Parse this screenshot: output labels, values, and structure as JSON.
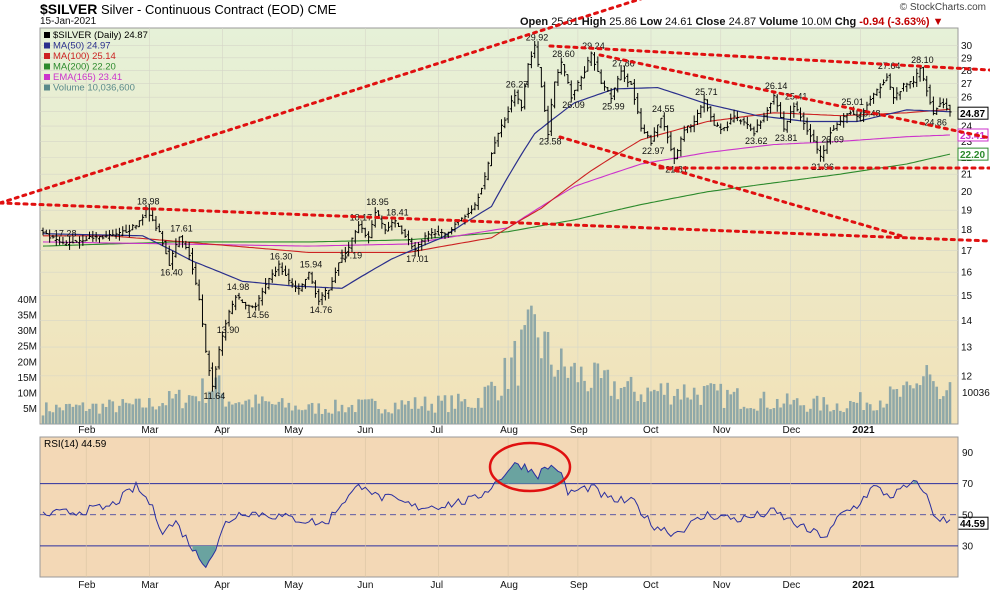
{
  "header": {
    "symbol": "$SILVER",
    "name": "Silver - Continuous Contract (EOD)",
    "exchange": "CME",
    "date": "15-Jan-2021",
    "open_label": "Open",
    "open": "25.61",
    "high_label": "High",
    "high": "25.86",
    "low_label": "Low",
    "low": "24.61",
    "close_label": "Close",
    "close": "24.87",
    "volume_label": "Volume",
    "volume": "10.0M",
    "chg_label": "Chg",
    "chg": "-0.94 (-3.63%)",
    "brand": "© StockCharts.com"
  },
  "legend": [
    {
      "text": "$SILVER (Daily) 24.87",
      "color": "#000000"
    },
    {
      "text": "MA(50) 24.97",
      "color": "#2a2f8c"
    },
    {
      "text": "MA(100) 25.14",
      "color": "#cc2222"
    },
    {
      "text": "MA(200) 22.20",
      "color": "#2c8a2c"
    },
    {
      "text": "EMA(165) 23.41",
      "color": "#cc33cc"
    },
    {
      "text": "Volume 10,036,600",
      "color": "#5a8a8a"
    }
  ],
  "rsi_legend": "RSI(14) 44.59",
  "colors": {
    "panel_top": "#e6f1d8",
    "panel_bottom": "#f2e2b8",
    "rsi_bg": "#f3d8b6",
    "rsi_line": "#2a2fa0",
    "rsi_fill": "#6aa3a0",
    "trend": "#e01010",
    "ma50": "#2a2f8c",
    "ma100": "#cc2222",
    "ma200": "#2c8a2c",
    "ema165": "#cc33cc",
    "volume": "#8fa8a8"
  },
  "chart_data": {
    "type": "line",
    "title": "$SILVER Silver - Continuous Contract (EOD) CME",
    "price_axis": {
      "scale": "log",
      "ylim": [
        10.5,
        31.5
      ],
      "ticks": [
        12,
        13,
        14,
        15,
        16,
        17,
        18,
        19,
        20,
        21,
        22,
        23,
        24,
        25,
        26,
        27,
        28,
        29,
        30
      ]
    },
    "volume_axis": {
      "unit": "M",
      "ticks": [
        "5M",
        "10M",
        "15M",
        "20M",
        "25M",
        "30M",
        "35M",
        "40M"
      ],
      "max": 45
    },
    "rsi_axis": {
      "ylim": [
        10,
        100
      ],
      "ticks": [
        30,
        50,
        70,
        90
      ],
      "overbought": 70,
      "oversold": 30
    },
    "x_months": [
      "Feb",
      "Mar",
      "Apr",
      "May",
      "Jun",
      "Jul",
      "Aug",
      "Sep",
      "Oct",
      "Nov",
      "Dec",
      "2021"
    ],
    "price_anchors": [
      [
        0,
        17.8
      ],
      [
        6,
        17.28
      ],
      [
        14,
        17.6
      ],
      [
        22,
        17.7
      ],
      [
        28,
        18.2
      ],
      [
        31,
        18.98
      ],
      [
        35,
        17.9
      ],
      [
        38,
        16.4
      ],
      [
        41,
        17.61
      ],
      [
        44,
        16.8
      ],
      [
        47,
        14.8
      ],
      [
        49,
        12.8
      ],
      [
        51,
        11.64
      ],
      [
        53,
        12.9
      ],
      [
        55,
        13.9
      ],
      [
        58,
        14.98
      ],
      [
        61,
        14.6
      ],
      [
        64,
        14.56
      ],
      [
        67,
        15.4
      ],
      [
        71,
        16.3
      ],
      [
        74,
        15.6
      ],
      [
        77,
        15.2
      ],
      [
        80,
        15.94
      ],
      [
        83,
        14.76
      ],
      [
        86,
        15.3
      ],
      [
        89,
        16.4
      ],
      [
        92,
        17.19
      ],
      [
        95,
        18.17
      ],
      [
        98,
        17.6
      ],
      [
        100,
        18.95
      ],
      [
        103,
        18.0
      ],
      [
        106,
        18.41
      ],
      [
        109,
        17.7
      ],
      [
        112,
        17.01
      ],
      [
        115,
        17.6
      ],
      [
        118,
        17.9
      ],
      [
        121,
        17.7
      ],
      [
        124,
        18.3
      ],
      [
        127,
        18.7
      ],
      [
        130,
        19.3
      ],
      [
        133,
        20.8
      ],
      [
        136,
        23.0
      ],
      [
        139,
        24.5
      ],
      [
        142,
        26.27
      ],
      [
        144,
        25.3
      ],
      [
        146,
        28.6
      ],
      [
        148,
        29.92
      ],
      [
        150,
        26.8
      ],
      [
        152,
        23.58
      ],
      [
        154,
        27.1
      ],
      [
        156,
        28.6
      ],
      [
        159,
        26.09
      ],
      [
        162,
        27.4
      ],
      [
        165,
        29.24
      ],
      [
        168,
        27.1
      ],
      [
        171,
        25.99
      ],
      [
        174,
        27.86
      ],
      [
        177,
        26.9
      ],
      [
        180,
        23.8
      ],
      [
        183,
        22.97
      ],
      [
        186,
        24.55
      ],
      [
        188,
        23.4
      ],
      [
        190,
        21.81
      ],
      [
        193,
        23.7
      ],
      [
        196,
        24.3
      ],
      [
        199,
        25.71
      ],
      [
        202,
        24.1
      ],
      [
        205,
        23.8
      ],
      [
        208,
        24.6
      ],
      [
        211,
        24.2
      ],
      [
        214,
        23.62
      ],
      [
        217,
        24.7
      ],
      [
        220,
        26.14
      ],
      [
        223,
        23.81
      ],
      [
        226,
        25.41
      ],
      [
        229,
        24.2
      ],
      [
        232,
        23.0
      ],
      [
        234,
        21.96
      ],
      [
        237,
        23.69
      ],
      [
        240,
        24.3
      ],
      [
        243,
        25.01
      ],
      [
        246,
        24.3
      ],
      [
        248,
        25.48
      ],
      [
        251,
        26.4
      ],
      [
        254,
        27.64
      ],
      [
        256,
        25.9
      ],
      [
        259,
        26.8
      ],
      [
        262,
        27.2
      ],
      [
        264,
        28.1
      ],
      [
        266,
        26.6
      ],
      [
        268,
        24.86
      ],
      [
        270,
        25.6
      ],
      [
        272,
        25.3
      ],
      [
        273,
        24.87
      ]
    ],
    "ema165_anchors": [
      [
        0,
        17.4
      ],
      [
        40,
        17.3
      ],
      [
        80,
        17.2
      ],
      [
        110,
        17.3
      ],
      [
        140,
        18.1
      ],
      [
        160,
        20.3
      ],
      [
        180,
        21.6
      ],
      [
        200,
        22.3
      ],
      [
        220,
        22.8
      ],
      [
        240,
        23.0
      ],
      [
        260,
        23.3
      ],
      [
        273,
        23.41
      ]
    ],
    "ma200_anchors": [
      [
        0,
        17.2
      ],
      [
        40,
        17.4
      ],
      [
        80,
        17.4
      ],
      [
        110,
        17.5
      ],
      [
        140,
        17.9
      ],
      [
        160,
        18.5
      ],
      [
        180,
        19.3
      ],
      [
        200,
        20.0
      ],
      [
        220,
        20.5
      ],
      [
        240,
        21.0
      ],
      [
        260,
        21.6
      ],
      [
        273,
        22.2
      ]
    ],
    "ma100_anchors": [
      [
        20,
        17.7
      ],
      [
        50,
        17.3
      ],
      [
        80,
        16.9
      ],
      [
        110,
        16.9
      ],
      [
        135,
        17.6
      ],
      [
        150,
        19.1
      ],
      [
        165,
        21.2
      ],
      [
        180,
        23.1
      ],
      [
        200,
        24.3
      ],
      [
        220,
        24.9
      ],
      [
        240,
        24.7
      ],
      [
        260,
        24.9
      ],
      [
        273,
        25.14
      ]
    ],
    "ma50_anchors": [
      [
        0,
        17.8
      ],
      [
        30,
        17.7
      ],
      [
        45,
        16.5
      ],
      [
        60,
        15.6
      ],
      [
        75,
        15.4
      ],
      [
        90,
        15.3
      ],
      [
        105,
        16.6
      ],
      [
        120,
        17.6
      ],
      [
        135,
        19.2
      ],
      [
        148,
        23.5
      ],
      [
        160,
        25.6
      ],
      [
        172,
        26.6
      ],
      [
        185,
        26.7
      ],
      [
        200,
        25.5
      ],
      [
        215,
        24.7
      ],
      [
        230,
        24.3
      ],
      [
        245,
        24.3
      ],
      [
        260,
        25.1
      ],
      [
        273,
        24.97
      ]
    ],
    "volume_anchors": [
      [
        0,
        5
      ],
      [
        30,
        6
      ],
      [
        45,
        9
      ],
      [
        52,
        13
      ],
      [
        55,
        8
      ],
      [
        80,
        5
      ],
      [
        100,
        6
      ],
      [
        130,
        7
      ],
      [
        138,
        14
      ],
      [
        145,
        24
      ],
      [
        149,
        30
      ],
      [
        152,
        22
      ],
      [
        156,
        18
      ],
      [
        165,
        14
      ],
      [
        180,
        10
      ],
      [
        190,
        11
      ],
      [
        220,
        7
      ],
      [
        240,
        6
      ],
      [
        262,
        10
      ],
      [
        266,
        19
      ],
      [
        270,
        7
      ],
      [
        273,
        10
      ]
    ],
    "rsi_anchors": [
      [
        0,
        50
      ],
      [
        10,
        52
      ],
      [
        20,
        55
      ],
      [
        28,
        68
      ],
      [
        32,
        58
      ],
      [
        36,
        40
      ],
      [
        40,
        45
      ],
      [
        44,
        32
      ],
      [
        47,
        22
      ],
      [
        49,
        19
      ],
      [
        52,
        28
      ],
      [
        55,
        45
      ],
      [
        60,
        52
      ],
      [
        68,
        50
      ],
      [
        80,
        46
      ],
      [
        85,
        44
      ],
      [
        90,
        58
      ],
      [
        95,
        68
      ],
      [
        97,
        70
      ],
      [
        100,
        62
      ],
      [
        105,
        60
      ],
      [
        112,
        55
      ],
      [
        120,
        56
      ],
      [
        130,
        60
      ],
      [
        136,
        70
      ],
      [
        140,
        79
      ],
      [
        143,
        83
      ],
      [
        146,
        80
      ],
      [
        149,
        76
      ],
      [
        152,
        81
      ],
      [
        155,
        80
      ],
      [
        158,
        64
      ],
      [
        165,
        68
      ],
      [
        170,
        60
      ],
      [
        178,
        58
      ],
      [
        183,
        44
      ],
      [
        190,
        38
      ],
      [
        200,
        50
      ],
      [
        210,
        47
      ],
      [
        220,
        52
      ],
      [
        230,
        40
      ],
      [
        236,
        36
      ],
      [
        240,
        50
      ],
      [
        245,
        56
      ],
      [
        250,
        68
      ],
      [
        255,
        62
      ],
      [
        262,
        70
      ],
      [
        265,
        67
      ],
      [
        268,
        50
      ],
      [
        273,
        44.59
      ]
    ],
    "price_labels": [
      "17.28",
      "18.98",
      "17.61",
      "16.40",
      "14.98",
      "13.90",
      "11.64",
      "16.30",
      "14.56",
      "15.94",
      "14.76",
      "18.17",
      "17.19",
      "18.95",
      "18.41",
      "17.01",
      "26.27",
      "29.92",
      "28.60",
      "26.09",
      "23.58",
      "29.24",
      "27.86",
      "25.99",
      "24.55",
      "22.97",
      "21.81",
      "25.71",
      "26.14",
      "25.41",
      "23.62",
      "23.81",
      "21.96",
      "25.01",
      "23.69",
      "25.48",
      "27.64",
      "28.10",
      "24.86"
    ],
    "last_values": {
      "close": "24.87",
      "ema165": "23.41",
      "ma200": "22.20",
      "volume": "10036",
      "rsi": "44.59"
    }
  }
}
